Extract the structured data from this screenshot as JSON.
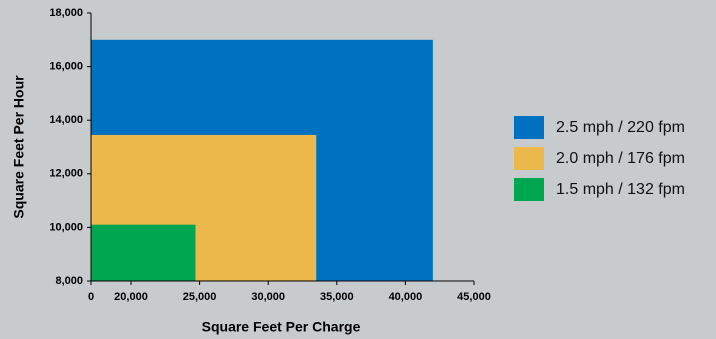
{
  "chart_data": {
    "type": "rect",
    "x_label": "Square Feet Per Charge",
    "y_label": "Square Feet Per Hour",
    "xlim": [
      0,
      45000
    ],
    "xticks": [
      0,
      {
        "value": 20000,
        "label": "20,000"
      },
      {
        "value": 25000,
        "label": "25,000"
      },
      {
        "value": 30000,
        "label": "30,000"
      },
      {
        "value": 35000,
        "label": "35,000"
      },
      {
        "value": 40000,
        "label": "40,000"
      },
      {
        "value": 45000,
        "label": "45,000"
      }
    ],
    "axis_break": true,
    "ylim": [
      8000,
      18000
    ],
    "yticks": [
      {
        "value": 8000,
        "label": "8,000"
      },
      {
        "value": 10000,
        "label": "10,000"
      },
      {
        "value": 12000,
        "label": "12,000"
      },
      {
        "value": 14000,
        "label": "14,000"
      },
      {
        "value": 16000,
        "label": "16,000"
      },
      {
        "value": 18000,
        "label": "18,000"
      }
    ],
    "series": [
      {
        "name": "2.5 mph / 220 fpm",
        "color": "#0070c0",
        "x": 42000,
        "value": 17000
      },
      {
        "name": "2.0 mph / 176 fpm",
        "color": "#ebb84c",
        "x": 33500,
        "value": 13450
      },
      {
        "name": "1.5 mph / 132 fpm",
        "color": "#00a650",
        "x": 24700,
        "value": 10100
      }
    ],
    "legend": "right"
  }
}
